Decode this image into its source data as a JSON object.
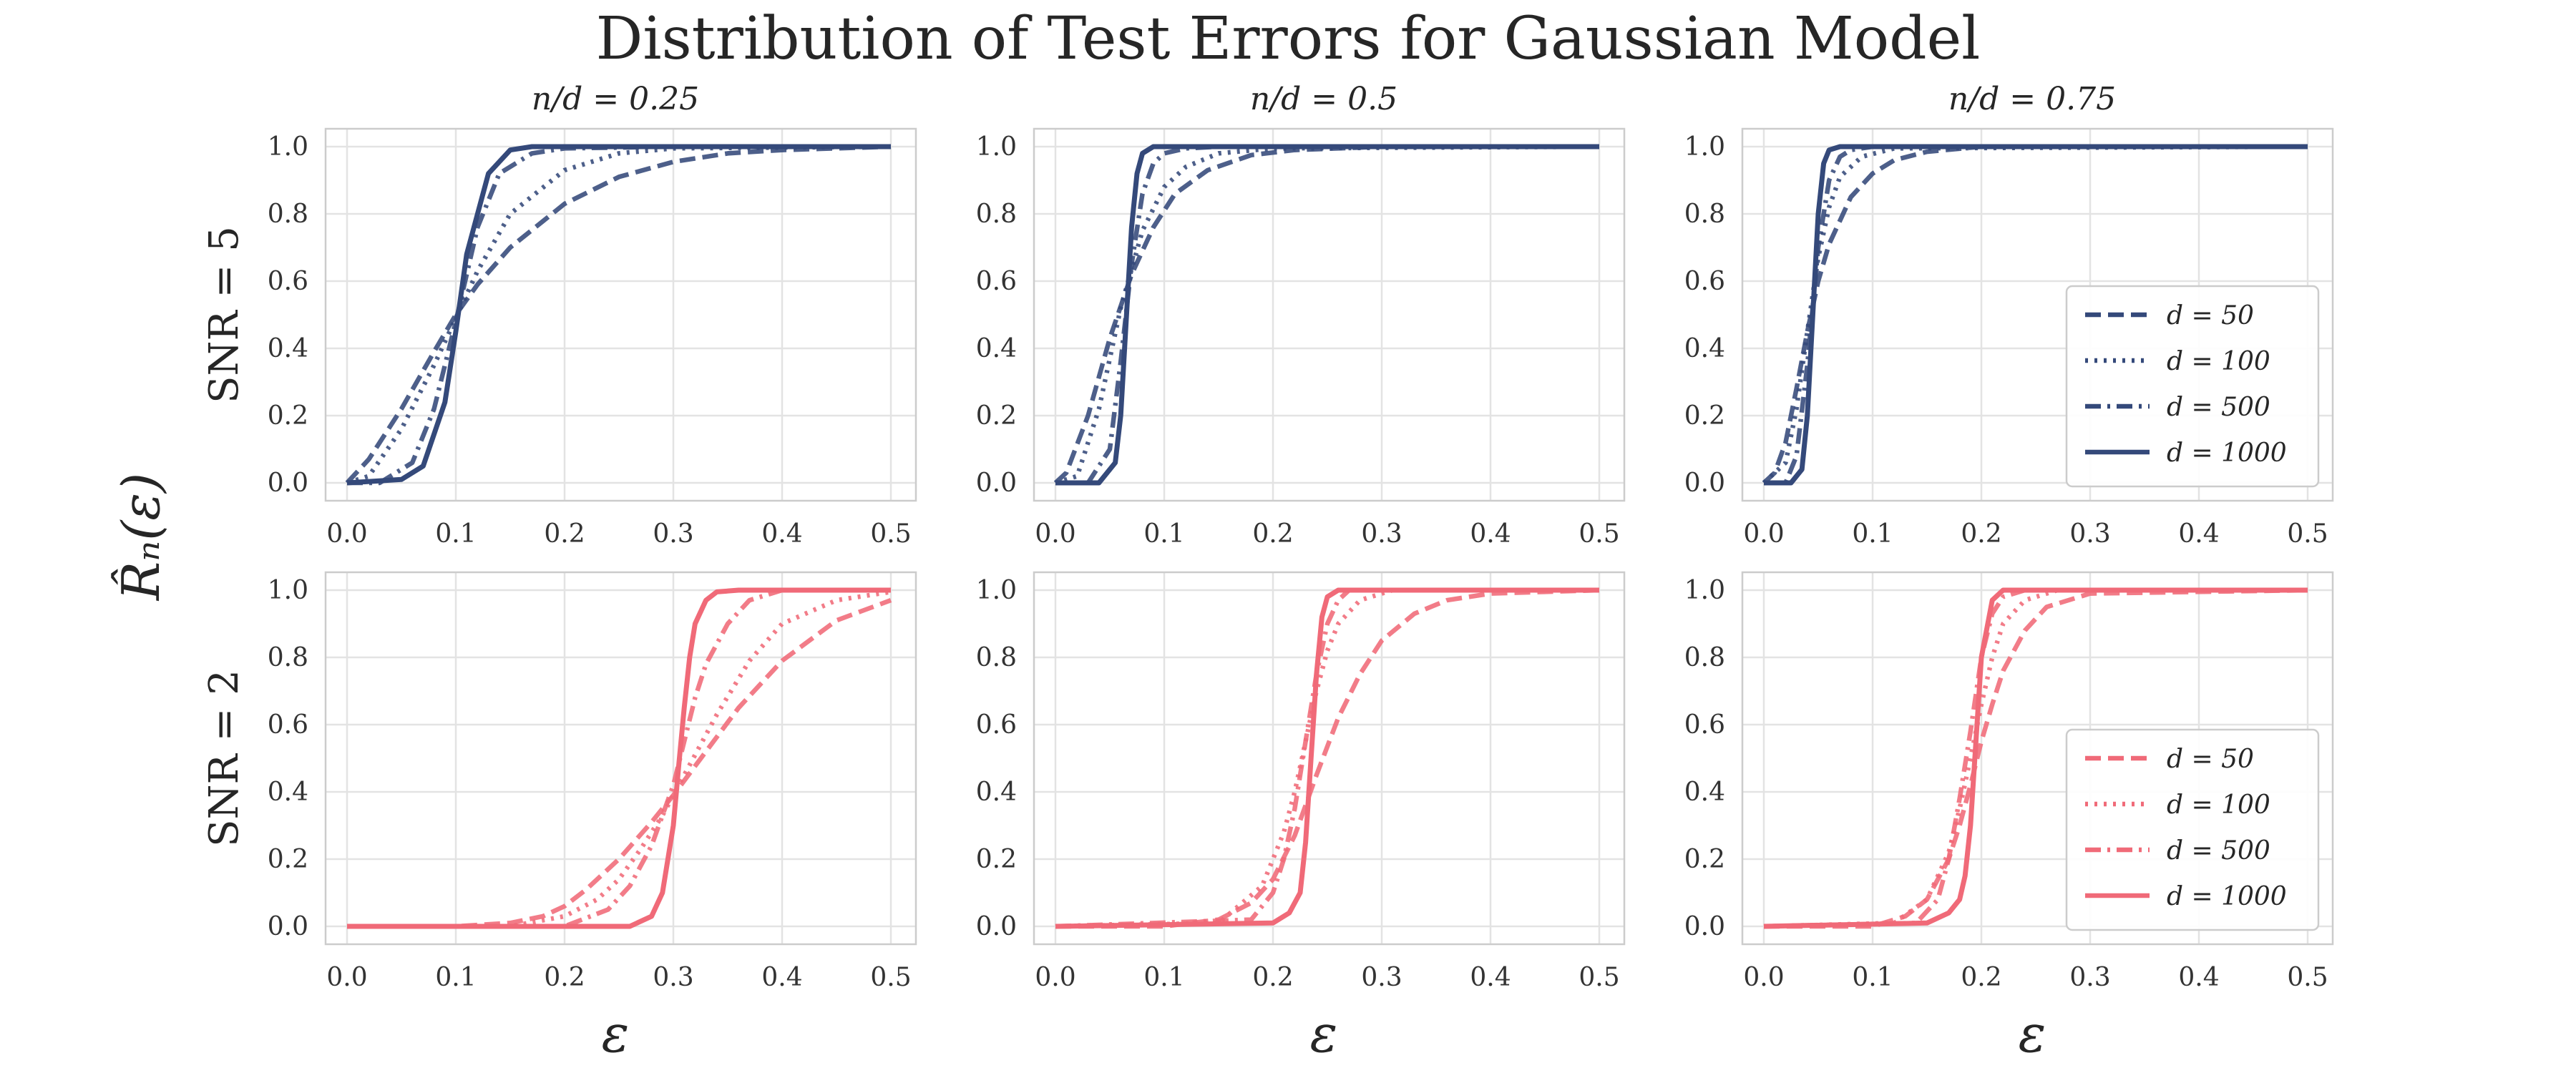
{
  "figure": {
    "title": "Distribution of Test Errors for Gaussian Model",
    "y_label": "R̂ₙ(ε)",
    "x_label": "ε",
    "col_titles": [
      "n/d = 0.25",
      "n/d = 0.5",
      "n/d = 0.75"
    ],
    "row_labels": [
      "SNR = 5",
      "SNR = 2"
    ],
    "colors": {
      "snr5": "#34497a",
      "snr2": "#f06a78",
      "grid": "#e3e3e3",
      "frame": "#cccccc"
    }
  },
  "chart_data": [
    {
      "type": "line",
      "row": 0,
      "col": 0,
      "xlim": [
        0,
        0.5
      ],
      "ylim": [
        0,
        1
      ],
      "xticks": [
        "0.0",
        "0.1",
        "0.2",
        "0.3",
        "0.4",
        "0.5"
      ],
      "yticks": [
        "0.0",
        "0.2",
        "0.4",
        "0.6",
        "0.8",
        "1.0"
      ],
      "grid": true,
      "series": [
        {
          "name": "d = 50",
          "dash": "dashed",
          "x": [
            0,
            0.02,
            0.05,
            0.08,
            0.1,
            0.12,
            0.15,
            0.2,
            0.25,
            0.3,
            0.35,
            0.4,
            0.5
          ],
          "y": [
            0,
            0.07,
            0.22,
            0.39,
            0.5,
            0.59,
            0.7,
            0.83,
            0.91,
            0.955,
            0.98,
            0.99,
            1
          ]
        },
        {
          "name": "d = 100",
          "dash": "dotted",
          "x": [
            0,
            0.02,
            0.05,
            0.08,
            0.1,
            0.12,
            0.15,
            0.2,
            0.25,
            0.3,
            0.5
          ],
          "y": [
            0,
            0.02,
            0.16,
            0.35,
            0.49,
            0.63,
            0.8,
            0.93,
            0.98,
            0.995,
            1
          ]
        },
        {
          "name": "d = 500",
          "dash": "dashdot",
          "x": [
            0,
            0.03,
            0.06,
            0.08,
            0.1,
            0.12,
            0.14,
            0.17,
            0.2,
            0.3,
            0.5
          ],
          "y": [
            0,
            0,
            0.06,
            0.22,
            0.48,
            0.76,
            0.92,
            0.98,
            0.995,
            1,
            1
          ]
        },
        {
          "name": "d = 1000",
          "dash": "solid",
          "x": [
            0,
            0.05,
            0.07,
            0.09,
            0.1,
            0.11,
            0.13,
            0.15,
            0.17,
            0.5
          ],
          "y": [
            0,
            0.01,
            0.05,
            0.24,
            0.45,
            0.68,
            0.92,
            0.99,
            1,
            1
          ]
        }
      ]
    },
    {
      "type": "line",
      "row": 0,
      "col": 1,
      "xlim": [
        0,
        0.5
      ],
      "ylim": [
        0,
        1
      ],
      "xticks": [
        "0.0",
        "0.1",
        "0.2",
        "0.3",
        "0.4",
        "0.5"
      ],
      "yticks": [
        "0.0",
        "0.2",
        "0.4",
        "0.6",
        "0.8",
        "1.0"
      ],
      "grid": true,
      "series": [
        {
          "name": "d = 50",
          "dash": "dashed",
          "x": [
            0,
            0.01,
            0.03,
            0.05,
            0.07,
            0.09,
            0.11,
            0.14,
            0.18,
            0.22,
            0.3,
            0.5
          ],
          "y": [
            0,
            0.03,
            0.2,
            0.43,
            0.62,
            0.76,
            0.86,
            0.93,
            0.975,
            0.99,
            1,
            1
          ]
        },
        {
          "name": "d = 100",
          "dash": "dotted",
          "x": [
            0,
            0.02,
            0.04,
            0.06,
            0.08,
            0.1,
            0.12,
            0.15,
            0.2,
            0.5
          ],
          "y": [
            0,
            0.02,
            0.22,
            0.52,
            0.75,
            0.88,
            0.94,
            0.98,
            0.995,
            1
          ]
        },
        {
          "name": "d = 500",
          "dash": "dashdot",
          "x": [
            0,
            0.03,
            0.05,
            0.06,
            0.07,
            0.08,
            0.09,
            0.1,
            0.12,
            0.15,
            0.5
          ],
          "y": [
            0,
            0,
            0.1,
            0.36,
            0.65,
            0.86,
            0.95,
            0.98,
            0.995,
            1,
            1
          ]
        },
        {
          "name": "d = 1000",
          "dash": "solid",
          "x": [
            0,
            0.04,
            0.055,
            0.06,
            0.065,
            0.07,
            0.075,
            0.08,
            0.09,
            0.1,
            0.5
          ],
          "y": [
            0,
            0,
            0.06,
            0.2,
            0.48,
            0.76,
            0.92,
            0.98,
            1,
            1,
            1
          ]
        }
      ]
    },
    {
      "type": "line",
      "row": 0,
      "col": 2,
      "xlim": [
        0,
        0.5
      ],
      "ylim": [
        0,
        1
      ],
      "xticks": [
        "0.0",
        "0.1",
        "0.2",
        "0.3",
        "0.4",
        "0.5"
      ],
      "yticks": [
        "0.0",
        "0.2",
        "0.4",
        "0.6",
        "0.8",
        "1.0"
      ],
      "grid": true,
      "legend": "lower-right",
      "series": [
        {
          "name": "d = 50",
          "dash": "dashed",
          "x": [
            0,
            0.01,
            0.02,
            0.03,
            0.04,
            0.05,
            0.06,
            0.08,
            0.1,
            0.12,
            0.15,
            0.2,
            0.5
          ],
          "y": [
            0,
            0.03,
            0.12,
            0.28,
            0.45,
            0.6,
            0.71,
            0.85,
            0.92,
            0.96,
            0.985,
            1,
            1
          ]
        },
        {
          "name": "d = 100",
          "dash": "dotted",
          "x": [
            0,
            0.02,
            0.03,
            0.04,
            0.05,
            0.06,
            0.07,
            0.09,
            0.12,
            0.5
          ],
          "y": [
            0,
            0.06,
            0.22,
            0.45,
            0.67,
            0.82,
            0.91,
            0.97,
            0.995,
            1
          ]
        },
        {
          "name": "d = 500",
          "dash": "dashdot",
          "x": [
            0,
            0.02,
            0.03,
            0.04,
            0.05,
            0.06,
            0.07,
            0.08,
            0.1,
            0.5
          ],
          "y": [
            0,
            0,
            0.08,
            0.35,
            0.7,
            0.9,
            0.97,
            0.99,
            1,
            1
          ]
        },
        {
          "name": "d = 1000",
          "dash": "solid",
          "x": [
            0,
            0.025,
            0.035,
            0.04,
            0.045,
            0.05,
            0.055,
            0.06,
            0.07,
            0.5
          ],
          "y": [
            0,
            0,
            0.04,
            0.2,
            0.5,
            0.8,
            0.95,
            0.99,
            1,
            1
          ]
        }
      ]
    },
    {
      "type": "line",
      "row": 1,
      "col": 0,
      "xlim": [
        0,
        0.5
      ],
      "ylim": [
        0,
        1
      ],
      "xticks": [
        "0.0",
        "0.1",
        "0.2",
        "0.3",
        "0.4",
        "0.5"
      ],
      "yticks": [
        "0.0",
        "0.2",
        "0.4",
        "0.6",
        "0.8",
        "1.0"
      ],
      "grid": true,
      "series": [
        {
          "name": "d = 50",
          "dash": "dashed",
          "x": [
            0,
            0.1,
            0.15,
            0.18,
            0.2,
            0.22,
            0.25,
            0.28,
            0.3,
            0.33,
            0.36,
            0.4,
            0.45,
            0.5
          ],
          "y": [
            0,
            0,
            0.01,
            0.03,
            0.06,
            0.11,
            0.2,
            0.31,
            0.39,
            0.52,
            0.65,
            0.79,
            0.91,
            0.97
          ]
        },
        {
          "name": "d = 100",
          "dash": "dotted",
          "x": [
            0,
            0.15,
            0.2,
            0.23,
            0.25,
            0.27,
            0.29,
            0.31,
            0.34,
            0.37,
            0.4,
            0.45,
            0.5
          ],
          "y": [
            0,
            0,
            0.03,
            0.08,
            0.14,
            0.23,
            0.33,
            0.45,
            0.63,
            0.79,
            0.9,
            0.97,
            0.995
          ]
        },
        {
          "name": "d = 500",
          "dash": "dashdot",
          "x": [
            0,
            0.2,
            0.24,
            0.26,
            0.28,
            0.29,
            0.3,
            0.31,
            0.32,
            0.33,
            0.35,
            0.37,
            0.4,
            0.5
          ],
          "y": [
            0,
            0,
            0.05,
            0.12,
            0.24,
            0.33,
            0.42,
            0.55,
            0.68,
            0.78,
            0.9,
            0.97,
            1,
            1
          ]
        },
        {
          "name": "d = 1000",
          "dash": "solid",
          "x": [
            0,
            0.26,
            0.28,
            0.29,
            0.3,
            0.305,
            0.31,
            0.315,
            0.32,
            0.33,
            0.34,
            0.36,
            0.5
          ],
          "y": [
            0,
            0,
            0.03,
            0.1,
            0.3,
            0.48,
            0.65,
            0.8,
            0.9,
            0.97,
            0.995,
            1,
            1
          ]
        }
      ]
    },
    {
      "type": "line",
      "row": 1,
      "col": 1,
      "xlim": [
        0,
        0.5
      ],
      "ylim": [
        0,
        1
      ],
      "xticks": [
        "0.0",
        "0.1",
        "0.2",
        "0.3",
        "0.4",
        "0.5"
      ],
      "yticks": [
        "0.0",
        "0.2",
        "0.4",
        "0.6",
        "0.8",
        "1.0"
      ],
      "grid": true,
      "series": [
        {
          "name": "d = 50",
          "dash": "dashed",
          "x": [
            0,
            0.1,
            0.15,
            0.18,
            0.2,
            0.22,
            0.24,
            0.26,
            0.28,
            0.3,
            0.33,
            0.36,
            0.4,
            0.5
          ],
          "y": [
            0,
            0,
            0.02,
            0.07,
            0.14,
            0.27,
            0.45,
            0.62,
            0.75,
            0.85,
            0.93,
            0.97,
            0.99,
            1
          ]
        },
        {
          "name": "d = 100",
          "dash": "dotted",
          "x": [
            0,
            0.15,
            0.19,
            0.21,
            0.22,
            0.23,
            0.24,
            0.25,
            0.26,
            0.28,
            0.31,
            0.5
          ],
          "y": [
            0,
            0.01,
            0.12,
            0.28,
            0.4,
            0.55,
            0.7,
            0.82,
            0.9,
            0.97,
            1,
            1
          ]
        },
        {
          "name": "d = 500",
          "dash": "dashdot",
          "x": [
            0,
            0.18,
            0.2,
            0.21,
            0.22,
            0.23,
            0.24,
            0.25,
            0.26,
            0.27,
            0.3,
            0.5
          ],
          "y": [
            0,
            0.02,
            0.1,
            0.2,
            0.35,
            0.55,
            0.75,
            0.9,
            0.97,
            1,
            1,
            1
          ]
        },
        {
          "name": "d = 1000",
          "dash": "solid",
          "x": [
            0,
            0.2,
            0.215,
            0.225,
            0.23,
            0.235,
            0.24,
            0.245,
            0.25,
            0.26,
            0.5
          ],
          "y": [
            0,
            0.01,
            0.04,
            0.1,
            0.25,
            0.5,
            0.75,
            0.92,
            0.98,
            1,
            1
          ]
        }
      ]
    },
    {
      "type": "line",
      "row": 1,
      "col": 2,
      "xlim": [
        0,
        0.5
      ],
      "ylim": [
        0,
        1
      ],
      "xticks": [
        "0.0",
        "0.1",
        "0.2",
        "0.3",
        "0.4",
        "0.5"
      ],
      "yticks": [
        "0.0",
        "0.2",
        "0.4",
        "0.6",
        "0.8",
        "1.0"
      ],
      "grid": true,
      "legend": "lower-right",
      "series": [
        {
          "name": "d = 50",
          "dash": "dashed",
          "x": [
            0,
            0.1,
            0.13,
            0.15,
            0.17,
            0.18,
            0.19,
            0.2,
            0.21,
            0.22,
            0.24,
            0.26,
            0.3,
            0.5
          ],
          "y": [
            0,
            0,
            0.03,
            0.08,
            0.2,
            0.3,
            0.42,
            0.55,
            0.66,
            0.76,
            0.88,
            0.95,
            0.99,
            1
          ]
        },
        {
          "name": "d = 100",
          "dash": "dotted",
          "x": [
            0,
            0.12,
            0.15,
            0.17,
            0.18,
            0.19,
            0.2,
            0.21,
            0.22,
            0.24,
            0.27,
            0.5
          ],
          "y": [
            0,
            0.01,
            0.08,
            0.22,
            0.35,
            0.5,
            0.66,
            0.8,
            0.9,
            0.97,
            1,
            1
          ]
        },
        {
          "name": "d = 500",
          "dash": "dashdot",
          "x": [
            0,
            0.14,
            0.16,
            0.17,
            0.18,
            0.19,
            0.2,
            0.21,
            0.22,
            0.24,
            0.5
          ],
          "y": [
            0,
            0.01,
            0.08,
            0.2,
            0.38,
            0.58,
            0.8,
            0.93,
            0.98,
            1,
            1
          ]
        },
        {
          "name": "d = 1000",
          "dash": "solid",
          "x": [
            0,
            0.15,
            0.17,
            0.18,
            0.185,
            0.19,
            0.195,
            0.2,
            0.21,
            0.22,
            0.5
          ],
          "y": [
            0,
            0.01,
            0.04,
            0.08,
            0.15,
            0.3,
            0.55,
            0.8,
            0.97,
            1,
            1
          ]
        }
      ]
    }
  ]
}
